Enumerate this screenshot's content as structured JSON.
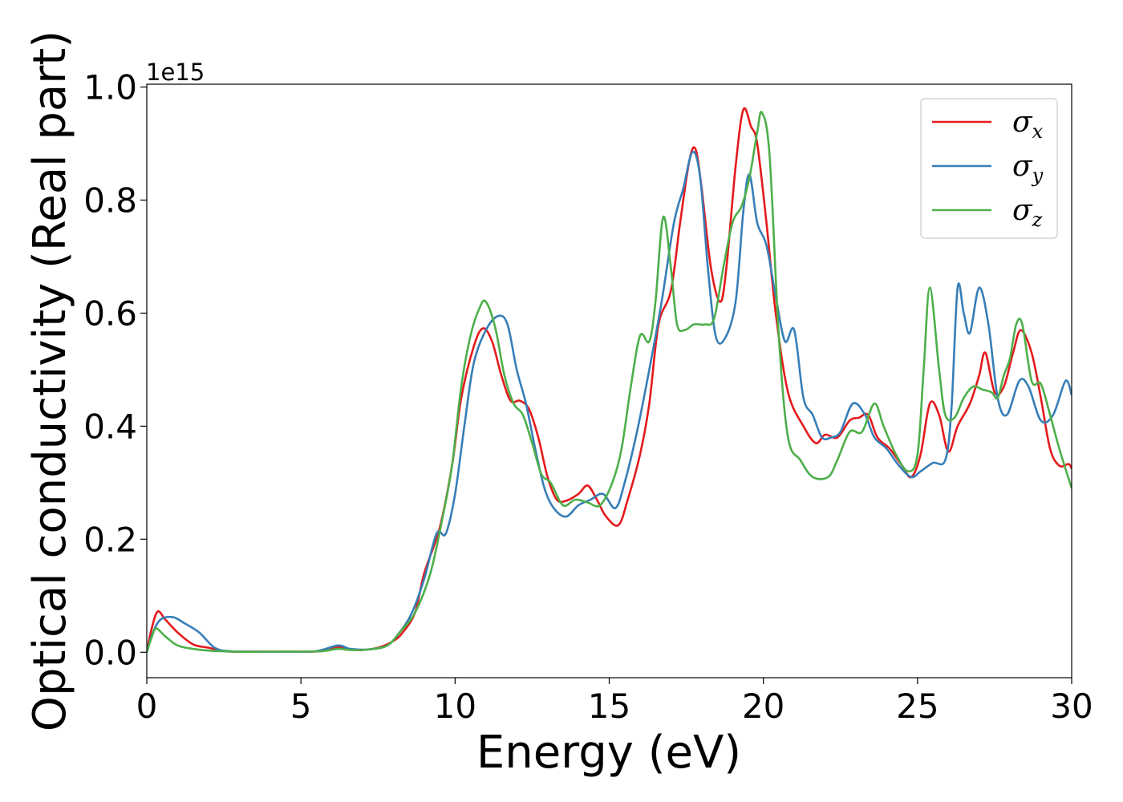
{
  "chart_data": {
    "type": "line",
    "title": "",
    "xlabel": "Energy (eV)",
    "ylabel": "Optical conductivity (Real part)",
    "y_offset_label": "1e15",
    "y_scale_factor": 1000000000000000.0,
    "xlim": [
      0,
      30
    ],
    "ylim": [
      -0.045,
      1.005
    ],
    "x_ticks": [
      0,
      5,
      10,
      15,
      20,
      25,
      30
    ],
    "x_tick_labels": [
      "0",
      "5",
      "10",
      "15",
      "20",
      "25",
      "30"
    ],
    "y_ticks": [
      0.0,
      0.2,
      0.4,
      0.6,
      0.8,
      1.0
    ],
    "y_tick_labels": [
      "0.0",
      "0.2",
      "0.4",
      "0.6",
      "0.8",
      "1.0"
    ],
    "grid": false,
    "legend_position": "top-right",
    "series": [
      {
        "name": "σx",
        "legend_base": "σ",
        "legend_sub": "x",
        "color": "#e41a1c",
        "points": [
          [
            0,
            0
          ],
          [
            0.15,
            0.04
          ],
          [
            0.35,
            0.072
          ],
          [
            0.6,
            0.058
          ],
          [
            1,
            0.035
          ],
          [
            1.5,
            0.014
          ],
          [
            2,
            0.008
          ],
          [
            2.5,
            0.002
          ],
          [
            3,
            0.001
          ],
          [
            4,
            0.001
          ],
          [
            5,
            0.001
          ],
          [
            5.7,
            0.002
          ],
          [
            6.2,
            0.009
          ],
          [
            6.6,
            0.005
          ],
          [
            7,
            0.004
          ],
          [
            7.5,
            0.008
          ],
          [
            8,
            0.02
          ],
          [
            8.3,
            0.035
          ],
          [
            8.7,
            0.07
          ],
          [
            9,
            0.14
          ],
          [
            9.5,
            0.22
          ],
          [
            9.9,
            0.33
          ],
          [
            10.2,
            0.45
          ],
          [
            10.6,
            0.54
          ],
          [
            10.9,
            0.573
          ],
          [
            11.2,
            0.55
          ],
          [
            11.5,
            0.49
          ],
          [
            11.8,
            0.445
          ],
          [
            12.1,
            0.445
          ],
          [
            12.4,
            0.43
          ],
          [
            12.7,
            0.38
          ],
          [
            13,
            0.31
          ],
          [
            13.3,
            0.27
          ],
          [
            13.6,
            0.268
          ],
          [
            14,
            0.28
          ],
          [
            14.3,
            0.295
          ],
          [
            14.6,
            0.27
          ],
          [
            14.9,
            0.24
          ],
          [
            15.3,
            0.225
          ],
          [
            15.6,
            0.27
          ],
          [
            16,
            0.35
          ],
          [
            16.3,
            0.44
          ],
          [
            16.6,
            0.58
          ],
          [
            17,
            0.64
          ],
          [
            17.3,
            0.76
          ],
          [
            17.6,
            0.87
          ],
          [
            17.8,
            0.89
          ],
          [
            18,
            0.82
          ],
          [
            18.3,
            0.68
          ],
          [
            18.6,
            0.62
          ],
          [
            18.8,
            0.68
          ],
          [
            19.1,
            0.86
          ],
          [
            19.35,
            0.96
          ],
          [
            19.6,
            0.93
          ],
          [
            19.8,
            0.9
          ],
          [
            20.1,
            0.76
          ],
          [
            20.4,
            0.6
          ],
          [
            20.8,
            0.46
          ],
          [
            21.3,
            0.4
          ],
          [
            21.7,
            0.37
          ],
          [
            22,
            0.385
          ],
          [
            22.4,
            0.38
          ],
          [
            22.8,
            0.41
          ],
          [
            23.1,
            0.415
          ],
          [
            23.4,
            0.42
          ],
          [
            23.7,
            0.38
          ],
          [
            24.1,
            0.36
          ],
          [
            24.5,
            0.33
          ],
          [
            24.8,
            0.31
          ],
          [
            25.1,
            0.35
          ],
          [
            25.4,
            0.44
          ],
          [
            25.7,
            0.42
          ],
          [
            26,
            0.355
          ],
          [
            26.3,
            0.4
          ],
          [
            26.7,
            0.44
          ],
          [
            27,
            0.49
          ],
          [
            27.2,
            0.53
          ],
          [
            27.5,
            0.46
          ],
          [
            27.8,
            0.47
          ],
          [
            28.1,
            0.53
          ],
          [
            28.35,
            0.57
          ],
          [
            28.7,
            0.53
          ],
          [
            29,
            0.45
          ],
          [
            29.3,
            0.36
          ],
          [
            29.6,
            0.33
          ],
          [
            29.9,
            0.333
          ],
          [
            30,
            0.325
          ]
        ]
      },
      {
        "name": "σy",
        "legend_base": "σ",
        "legend_sub": "y",
        "color": "#377eb8",
        "points": [
          [
            0,
            0
          ],
          [
            0.2,
            0.035
          ],
          [
            0.45,
            0.058
          ],
          [
            0.85,
            0.062
          ],
          [
            1.2,
            0.052
          ],
          [
            1.7,
            0.035
          ],
          [
            2.2,
            0.008
          ],
          [
            2.7,
            0.002
          ],
          [
            3.5,
            0.001
          ],
          [
            4.5,
            0.001
          ],
          [
            5.5,
            0.002
          ],
          [
            6.2,
            0.012
          ],
          [
            6.6,
            0.006
          ],
          [
            7.2,
            0.005
          ],
          [
            7.8,
            0.012
          ],
          [
            8.2,
            0.035
          ],
          [
            8.6,
            0.07
          ],
          [
            9,
            0.13
          ],
          [
            9.4,
            0.21
          ],
          [
            9.7,
            0.21
          ],
          [
            10,
            0.28
          ],
          [
            10.3,
            0.4
          ],
          [
            10.6,
            0.51
          ],
          [
            11,
            0.57
          ],
          [
            11.4,
            0.595
          ],
          [
            11.7,
            0.58
          ],
          [
            12,
            0.5
          ],
          [
            12.3,
            0.44
          ],
          [
            12.6,
            0.36
          ],
          [
            12.9,
            0.29
          ],
          [
            13.2,
            0.255
          ],
          [
            13.6,
            0.24
          ],
          [
            14,
            0.26
          ],
          [
            14.4,
            0.27
          ],
          [
            14.8,
            0.28
          ],
          [
            15.2,
            0.255
          ],
          [
            15.5,
            0.3
          ],
          [
            15.9,
            0.39
          ],
          [
            16.3,
            0.5
          ],
          [
            16.7,
            0.62
          ],
          [
            17.1,
            0.76
          ],
          [
            17.4,
            0.82
          ],
          [
            17.7,
            0.885
          ],
          [
            17.95,
            0.84
          ],
          [
            18.2,
            0.68
          ],
          [
            18.45,
            0.56
          ],
          [
            18.75,
            0.555
          ],
          [
            19.1,
            0.62
          ],
          [
            19.35,
            0.78
          ],
          [
            19.55,
            0.845
          ],
          [
            19.8,
            0.76
          ],
          [
            20.1,
            0.72
          ],
          [
            20.4,
            0.63
          ],
          [
            20.7,
            0.55
          ],
          [
            21,
            0.57
          ],
          [
            21.3,
            0.45
          ],
          [
            21.6,
            0.42
          ],
          [
            21.9,
            0.38
          ],
          [
            22.2,
            0.38
          ],
          [
            22.5,
            0.39
          ],
          [
            22.9,
            0.44
          ],
          [
            23.3,
            0.42
          ],
          [
            23.6,
            0.38
          ],
          [
            24,
            0.36
          ],
          [
            24.4,
            0.33
          ],
          [
            24.8,
            0.31
          ],
          [
            25.1,
            0.32
          ],
          [
            25.5,
            0.335
          ],
          [
            25.9,
            0.34
          ],
          [
            26.1,
            0.43
          ],
          [
            26.3,
            0.645
          ],
          [
            26.5,
            0.6
          ],
          [
            26.7,
            0.565
          ],
          [
            27,
            0.645
          ],
          [
            27.3,
            0.58
          ],
          [
            27.6,
            0.45
          ],
          [
            27.9,
            0.42
          ],
          [
            28.3,
            0.48
          ],
          [
            28.6,
            0.47
          ],
          [
            29,
            0.41
          ],
          [
            29.4,
            0.42
          ],
          [
            29.8,
            0.48
          ],
          [
            30,
            0.455
          ]
        ]
      },
      {
        "name": "σz",
        "legend_base": "σ",
        "legend_sub": "z",
        "color": "#4daf4a",
        "points": [
          [
            0,
            0
          ],
          [
            0.15,
            0.025
          ],
          [
            0.3,
            0.042
          ],
          [
            0.6,
            0.028
          ],
          [
            1,
            0.012
          ],
          [
            1.5,
            0.006
          ],
          [
            2,
            0.003
          ],
          [
            3,
            0.001
          ],
          [
            4,
            0.001
          ],
          [
            5,
            0.001
          ],
          [
            5.7,
            0.002
          ],
          [
            6.2,
            0.006
          ],
          [
            6.6,
            0.004
          ],
          [
            7.2,
            0.005
          ],
          [
            7.8,
            0.012
          ],
          [
            8.2,
            0.035
          ],
          [
            8.7,
            0.07
          ],
          [
            9.2,
            0.14
          ],
          [
            9.6,
            0.24
          ],
          [
            9.9,
            0.33
          ],
          [
            10.2,
            0.47
          ],
          [
            10.5,
            0.56
          ],
          [
            10.8,
            0.61
          ],
          [
            11,
            0.62
          ],
          [
            11.3,
            0.575
          ],
          [
            11.6,
            0.49
          ],
          [
            11.9,
            0.44
          ],
          [
            12.2,
            0.42
          ],
          [
            12.5,
            0.37
          ],
          [
            12.8,
            0.315
          ],
          [
            13.1,
            0.3
          ],
          [
            13.5,
            0.26
          ],
          [
            13.9,
            0.27
          ],
          [
            14.3,
            0.265
          ],
          [
            14.7,
            0.26
          ],
          [
            15.1,
            0.3
          ],
          [
            15.4,
            0.36
          ],
          [
            15.7,
            0.47
          ],
          [
            16,
            0.56
          ],
          [
            16.3,
            0.55
          ],
          [
            16.5,
            0.62
          ],
          [
            16.75,
            0.77
          ],
          [
            17,
            0.68
          ],
          [
            17.2,
            0.58
          ],
          [
            17.45,
            0.57
          ],
          [
            17.75,
            0.58
          ],
          [
            18.1,
            0.58
          ],
          [
            18.4,
            0.59
          ],
          [
            18.7,
            0.68
          ],
          [
            19,
            0.76
          ],
          [
            19.3,
            0.79
          ],
          [
            19.55,
            0.84
          ],
          [
            19.8,
            0.92
          ],
          [
            19.95,
            0.955
          ],
          [
            20.2,
            0.88
          ],
          [
            20.5,
            0.56
          ],
          [
            20.8,
            0.38
          ],
          [
            21.2,
            0.34
          ],
          [
            21.6,
            0.31
          ],
          [
            22.1,
            0.31
          ],
          [
            22.4,
            0.34
          ],
          [
            22.8,
            0.39
          ],
          [
            23.2,
            0.39
          ],
          [
            23.6,
            0.44
          ],
          [
            23.9,
            0.4
          ],
          [
            24.3,
            0.35
          ],
          [
            24.7,
            0.32
          ],
          [
            25,
            0.35
          ],
          [
            25.2,
            0.5
          ],
          [
            25.4,
            0.645
          ],
          [
            25.7,
            0.5
          ],
          [
            25.9,
            0.42
          ],
          [
            26.2,
            0.415
          ],
          [
            26.5,
            0.45
          ],
          [
            26.8,
            0.47
          ],
          [
            27.1,
            0.465
          ],
          [
            27.4,
            0.46
          ],
          [
            27.6,
            0.45
          ],
          [
            27.8,
            0.49
          ],
          [
            28,
            0.52
          ],
          [
            28.2,
            0.58
          ],
          [
            28.4,
            0.58
          ],
          [
            28.7,
            0.48
          ],
          [
            29,
            0.475
          ],
          [
            29.3,
            0.42
          ],
          [
            29.6,
            0.36
          ],
          [
            30,
            0.29
          ]
        ]
      }
    ]
  }
}
